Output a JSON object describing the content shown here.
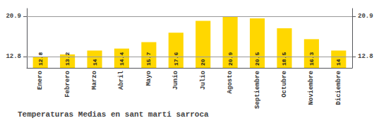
{
  "chart_data": {
    "type": "bar",
    "title": "Temperaturas Medias en sant marti sarroca",
    "categories": [
      "Enero",
      "Febrero",
      "Marzo",
      "Abril",
      "Mayo",
      "Junio",
      "Julio",
      "Agosto",
      "Septiembre",
      "Octubre",
      "Noviembre",
      "Diciembre"
    ],
    "values": [
      12.8,
      13.2,
      14.0,
      14.4,
      15.7,
      17.6,
      20.0,
      20.9,
      20.5,
      18.5,
      16.3,
      14.0
    ],
    "color": "#FFD700",
    "ylim": [
      10.5,
      22.5
    ],
    "yticks": [
      12.8,
      20.9
    ],
    "y2lim": [
      10.5,
      22.5
    ],
    "y2ticks": [
      12.8,
      20.9
    ],
    "grid": true,
    "data_labels": true
  }
}
